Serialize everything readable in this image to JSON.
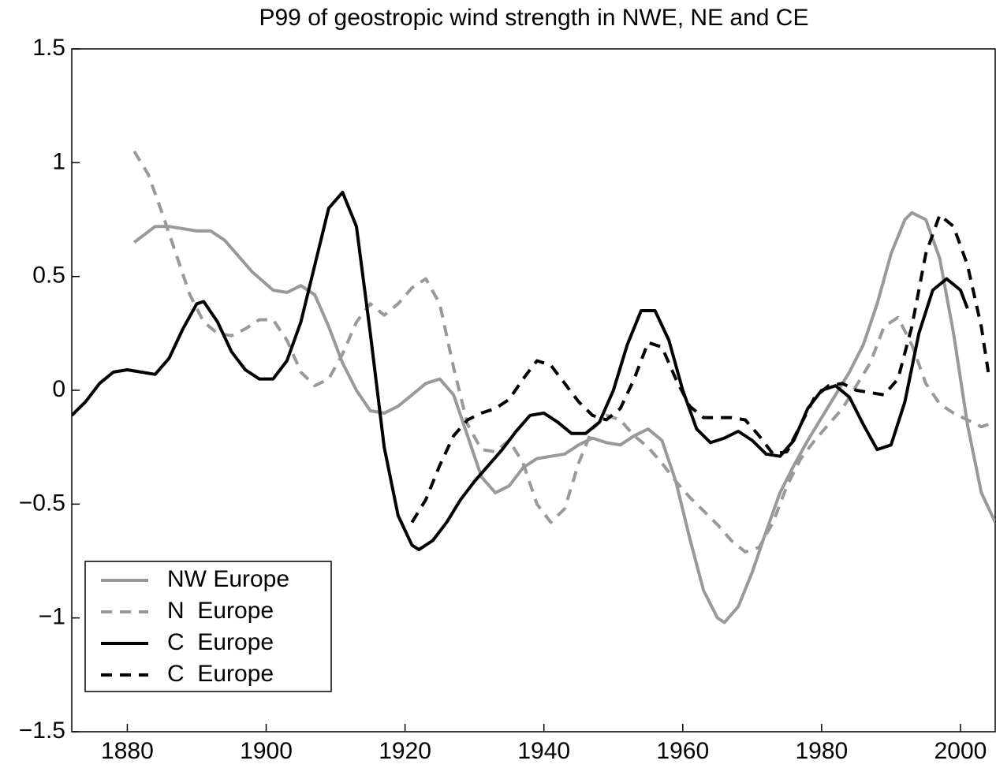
{
  "chart_data": {
    "type": "line",
    "title": "P99 of geostropic wind strength in NWE, NE and CE",
    "xlim": [
      1872,
      2005
    ],
    "xticks": [
      1880,
      1900,
      1920,
      1940,
      1960,
      1980,
      2000
    ],
    "ylim": [
      -1.5,
      1.5
    ],
    "yticks": [
      {
        "value": -1.5,
        "label": "−1.5"
      },
      {
        "value": -1,
        "label": "−1"
      },
      {
        "value": -0.5,
        "label": "−0.5"
      },
      0,
      0.5,
      1,
      1.5
    ],
    "legend": "lower left",
    "series": [
      {
        "name": "NW Europe",
        "color": "#999999",
        "dashed": false,
        "x": [
          1881,
          1884,
          1886,
          1890,
          1892,
          1894,
          1898,
          1901,
          1903,
          1905,
          1907,
          1909,
          1911,
          1913,
          1915,
          1917,
          1919,
          1921,
          1923,
          1925,
          1927,
          1929,
          1931,
          1933,
          1935,
          1937,
          1939,
          1941,
          1943,
          1945,
          1947,
          1949,
          1951,
          1953,
          1955,
          1957,
          1959,
          1961,
          1963,
          1965,
          1966,
          1968,
          1970,
          1972,
          1974,
          1976,
          1978,
          1980,
          1982,
          1984,
          1986,
          1988,
          1990,
          1992,
          1993,
          1995,
          1997,
          1999,
          2001,
          2003,
          2005
        ],
        "values": [
          0.65,
          0.72,
          0.72,
          0.7,
          0.7,
          0.66,
          0.52,
          0.44,
          0.43,
          0.46,
          0.42,
          0.28,
          0.12,
          0.0,
          -0.09,
          -0.1,
          -0.07,
          -0.02,
          0.03,
          0.05,
          -0.02,
          -0.2,
          -0.38,
          -0.45,
          -0.42,
          -0.34,
          -0.3,
          -0.29,
          -0.28,
          -0.24,
          -0.21,
          -0.23,
          -0.24,
          -0.2,
          -0.17,
          -0.22,
          -0.4,
          -0.65,
          -0.88,
          -1.0,
          -1.02,
          -0.95,
          -0.8,
          -0.62,
          -0.45,
          -0.33,
          -0.22,
          -0.12,
          -0.02,
          0.08,
          0.2,
          0.38,
          0.6,
          0.75,
          0.78,
          0.75,
          0.58,
          0.25,
          -0.15,
          -0.45,
          -0.58
        ]
      },
      {
        "name": "N  Europe",
        "color": "#999999",
        "dashed": true,
        "x": [
          1881,
          1883,
          1885,
          1887,
          1889,
          1891,
          1893,
          1895,
          1897,
          1899,
          1901,
          1903,
          1905,
          1907,
          1909,
          1911,
          1913,
          1915,
          1917,
          1919,
          1921,
          1923,
          1925,
          1927,
          1929,
          1931,
          1933,
          1935,
          1937,
          1939,
          1941,
          1943,
          1945,
          1947,
          1949,
          1951,
          1953,
          1955,
          1957,
          1959,
          1961,
          1963,
          1965,
          1967,
          1969,
          1971,
          1973,
          1975,
          1977,
          1979,
          1981,
          1983,
          1985,
          1987,
          1989,
          1991,
          1993,
          1995,
          1997,
          1999,
          2001,
          2003,
          2005
        ],
        "values": [
          1.05,
          0.95,
          0.78,
          0.6,
          0.42,
          0.3,
          0.25,
          0.24,
          0.27,
          0.31,
          0.31,
          0.22,
          0.08,
          0.02,
          0.05,
          0.16,
          0.3,
          0.38,
          0.33,
          0.38,
          0.45,
          0.49,
          0.38,
          0.1,
          -0.15,
          -0.26,
          -0.27,
          -0.22,
          -0.32,
          -0.5,
          -0.58,
          -0.52,
          -0.32,
          -0.17,
          -0.11,
          -0.13,
          -0.2,
          -0.25,
          -0.32,
          -0.4,
          -0.47,
          -0.53,
          -0.59,
          -0.66,
          -0.71,
          -0.69,
          -0.58,
          -0.42,
          -0.3,
          -0.22,
          -0.15,
          -0.08,
          0.02,
          0.12,
          0.28,
          0.32,
          0.2,
          0.03,
          -0.06,
          -0.1,
          -0.13,
          -0.16,
          -0.14
        ]
      },
      {
        "name": "C  Europe",
        "color": "#000000",
        "dashed": false,
        "x": [
          1872,
          1874,
          1876,
          1878,
          1880,
          1882,
          1884,
          1886,
          1888,
          1890,
          1891,
          1893,
          1895,
          1897,
          1899,
          1901,
          1903,
          1905,
          1907,
          1909,
          1911,
          1913,
          1915,
          1917,
          1919,
          1921,
          1922,
          1924,
          1926,
          1928,
          1930,
          1932,
          1934,
          1936,
          1938,
          1940,
          1942,
          1944,
          1946,
          1948,
          1950,
          1952,
          1954,
          1956,
          1958,
          1960,
          1962,
          1964,
          1966,
          1968,
          1970,
          1972,
          1974,
          1976,
          1978,
          1980,
          1982,
          1984,
          1986,
          1988,
          1990,
          1992,
          1994,
          1996,
          1998,
          2000,
          2001
        ],
        "values": [
          -0.11,
          -0.05,
          0.03,
          0.08,
          0.09,
          0.08,
          0.07,
          0.14,
          0.27,
          0.38,
          0.39,
          0.3,
          0.17,
          0.09,
          0.05,
          0.05,
          0.13,
          0.3,
          0.55,
          0.8,
          0.87,
          0.72,
          0.25,
          -0.25,
          -0.55,
          -0.68,
          -0.7,
          -0.66,
          -0.58,
          -0.48,
          -0.4,
          -0.33,
          -0.26,
          -0.18,
          -0.11,
          -0.1,
          -0.14,
          -0.19,
          -0.19,
          -0.14,
          0.0,
          0.2,
          0.35,
          0.35,
          0.22,
          0.0,
          -0.17,
          -0.23,
          -0.21,
          -0.18,
          -0.22,
          -0.28,
          -0.29,
          -0.22,
          -0.08,
          0.0,
          0.02,
          -0.03,
          -0.15,
          -0.26,
          -0.24,
          -0.05,
          0.25,
          0.44,
          0.49,
          0.44,
          0.36
        ]
      },
      {
        "name": "C  Europe",
        "color": "#000000",
        "dashed": true,
        "x": [
          1921,
          1923,
          1925,
          1927,
          1929,
          1931,
          1933,
          1935,
          1937,
          1939,
          1941,
          1943,
          1945,
          1947,
          1949,
          1951,
          1953,
          1955,
          1957,
          1959,
          1961,
          1963,
          1965,
          1967,
          1969,
          1971,
          1973,
          1975,
          1977,
          1979,
          1981,
          1983,
          1985,
          1987,
          1989,
          1991,
          1993,
          1995,
          1997,
          1999,
          2001,
          2003,
          2004
        ],
        "values": [
          -0.58,
          -0.48,
          -0.33,
          -0.2,
          -0.13,
          -0.1,
          -0.08,
          -0.04,
          0.05,
          0.13,
          0.11,
          0.03,
          -0.05,
          -0.11,
          -0.13,
          -0.08,
          0.05,
          0.21,
          0.19,
          0.05,
          -0.07,
          -0.12,
          -0.12,
          -0.12,
          -0.13,
          -0.2,
          -0.28,
          -0.27,
          -0.15,
          -0.03,
          0.02,
          0.03,
          0.0,
          -0.01,
          -0.02,
          0.05,
          0.28,
          0.6,
          0.77,
          0.72,
          0.55,
          0.28,
          0.08
        ]
      }
    ]
  }
}
